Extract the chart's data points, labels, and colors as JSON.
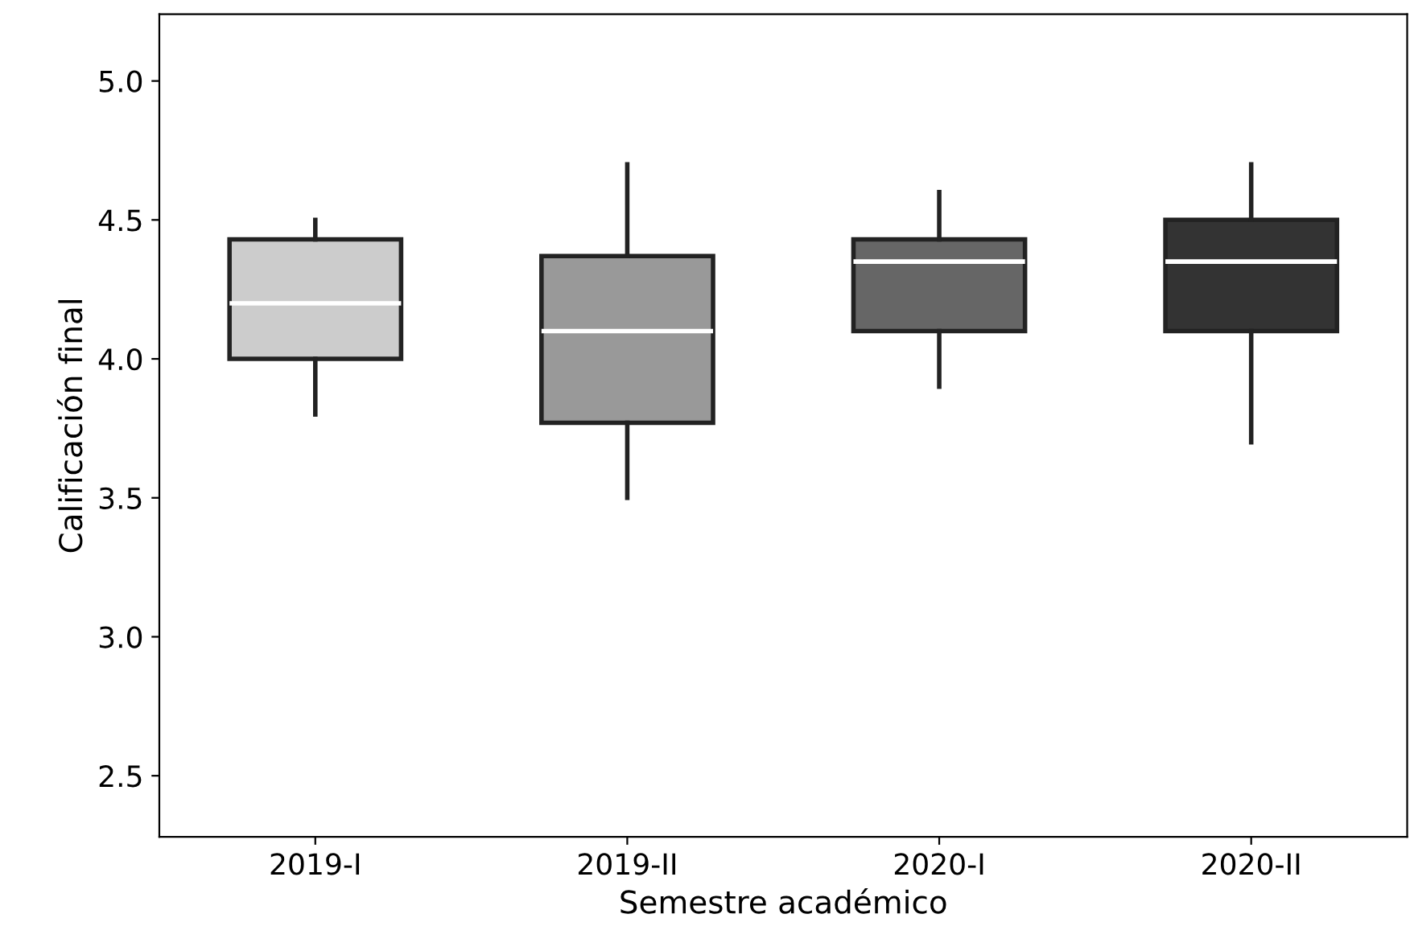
{
  "chart_data": {
    "type": "box",
    "xlabel": "Semestre académico",
    "ylabel": "Calificación final",
    "categories": [
      "2019-I",
      "2019-II",
      "2020-I",
      "2020-II"
    ],
    "colors": [
      "#cccccc",
      "#999999",
      "#666666",
      "#333333"
    ],
    "boxes": [
      {
        "low": 3.8,
        "q1": 4.0,
        "median": 4.2,
        "q3": 4.43,
        "high": 4.5
      },
      {
        "low": 3.5,
        "q1": 3.77,
        "median": 4.1,
        "q3": 4.37,
        "high": 4.7
      },
      {
        "low": 3.9,
        "q1": 4.1,
        "median": 4.35,
        "q3": 4.43,
        "high": 4.6
      },
      {
        "low": 3.7,
        "q1": 4.1,
        "median": 4.35,
        "q3": 4.5,
        "high": 4.7
      }
    ],
    "ylim": [
      2.28,
      5.24
    ],
    "yticks": [
      2.5,
      {
        "value": 3,
        "label": "3.0"
      },
      3.5,
      {
        "value": 4,
        "label": "4.0"
      },
      4.5,
      {
        "value": 5,
        "label": "5.0"
      }
    ],
    "grid": false
  }
}
